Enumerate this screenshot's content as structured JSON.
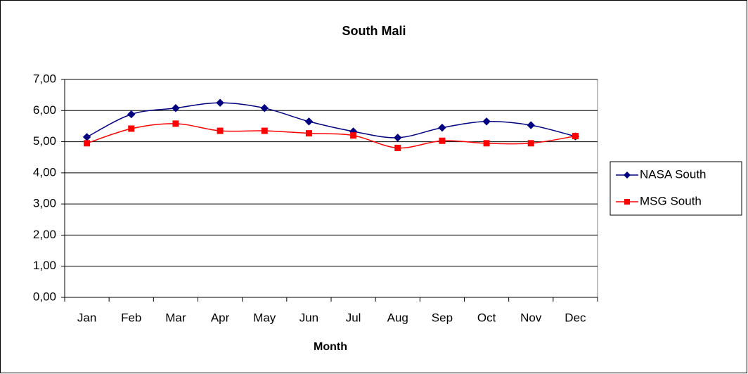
{
  "chart_data": {
    "type": "line",
    "title": "South Mali",
    "x_label": "Month",
    "categories": [
      "Jan",
      "Feb",
      "Mar",
      "Apr",
      "May",
      "Jun",
      "Jul",
      "Aug",
      "Sep",
      "Oct",
      "Nov",
      "Dec"
    ],
    "series": [
      {
        "name": "NASA South",
        "color": "#000080",
        "marker": "diamond",
        "values": [
          5.15,
          5.88,
          6.08,
          6.25,
          6.08,
          5.65,
          5.33,
          5.13,
          5.45,
          5.65,
          5.53,
          5.17
        ]
      },
      {
        "name": "MSG South",
        "color": "#ff0000",
        "marker": "square",
        "values": [
          4.95,
          5.42,
          5.58,
          5.35,
          5.35,
          5.27,
          5.2,
          4.8,
          5.03,
          4.95,
          4.95,
          5.18
        ]
      }
    ],
    "ylim": [
      0,
      7
    ],
    "yticks": [
      {
        "value": 0,
        "label": "0,00"
      },
      {
        "value": 1,
        "label": "1,00"
      },
      {
        "value": 2,
        "label": "2,00"
      },
      {
        "value": 3,
        "label": "3,00"
      },
      {
        "value": 4,
        "label": "4,00"
      },
      {
        "value": 5,
        "label": "5,00"
      },
      {
        "value": 6,
        "label": "6,00"
      },
      {
        "value": 7,
        "label": "7,00"
      }
    ],
    "grid": true,
    "smooth": true,
    "legend": "right"
  }
}
